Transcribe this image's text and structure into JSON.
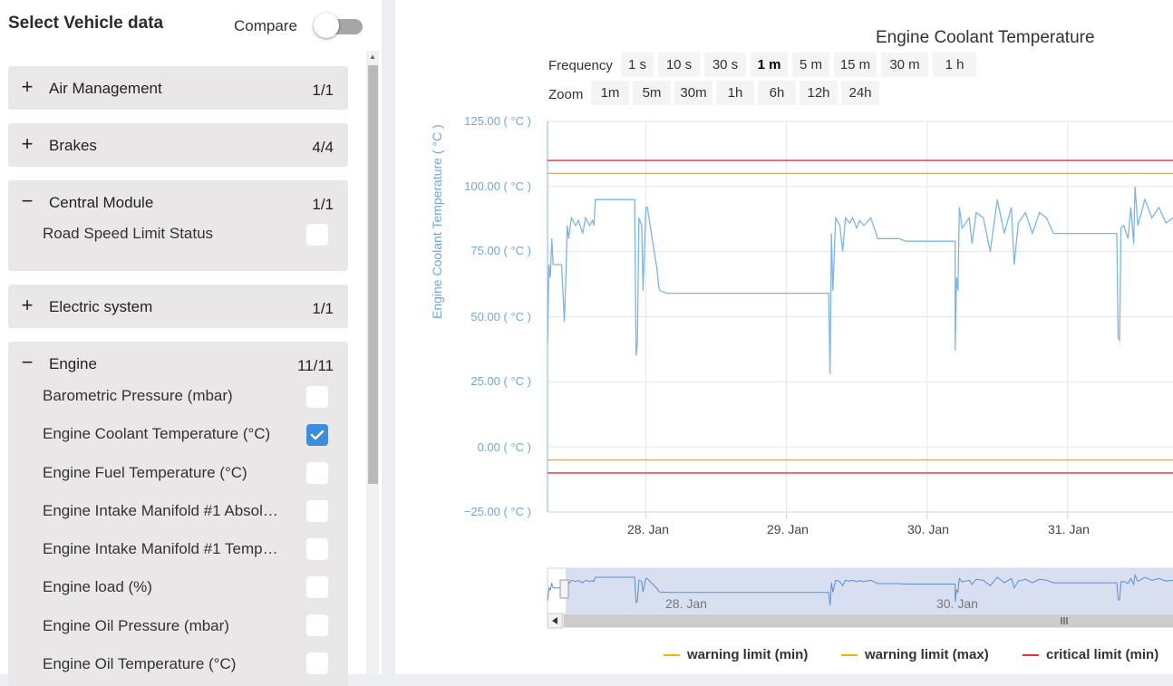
{
  "sidebar": {
    "title": "Select Vehicle data",
    "compare_label": "Compare",
    "groups": [
      {
        "sign": "+",
        "name": "Air Management",
        "count": "1/1",
        "items": []
      },
      {
        "sign": "+",
        "name": "Brakes",
        "count": "4/4",
        "items": []
      },
      {
        "sign": "−",
        "name": "Central Module",
        "count": "1/1",
        "items": [
          {
            "label": "Road Speed Limit Status",
            "checked": false
          }
        ]
      },
      {
        "sign": "+",
        "name": "Electric system",
        "count": "1/1",
        "items": []
      },
      {
        "sign": "−",
        "name": "Engine",
        "count": "11/11",
        "items": [
          {
            "label": "Barometric Pressure (mbar)",
            "checked": false
          },
          {
            "label": "Engine Coolant Temperature (°C)",
            "checked": true
          },
          {
            "label": "Engine Fuel Temperature (°C)",
            "checked": false
          },
          {
            "label": "Engine Intake Manifold #1 Absol…",
            "checked": false
          },
          {
            "label": "Engine Intake Manifold #1 Temp…",
            "checked": false
          },
          {
            "label": "Engine load (%)",
            "checked": false
          },
          {
            "label": "Engine Oil Pressure (mbar)",
            "checked": false
          },
          {
            "label": "Engine Oil Temperature (°C)",
            "checked": false
          }
        ]
      }
    ]
  },
  "chart": {
    "title": "Engine Coolant Temperature",
    "frequency_label": "Frequency",
    "frequency_options": [
      "1 s",
      "10 s",
      "30 s",
      "1 m",
      "5 m",
      "15 m",
      "30 m",
      "1 h"
    ],
    "frequency_selected": "1 m",
    "zoom_label": "Zoom",
    "zoom_options": [
      "1m",
      "5m",
      "30m",
      "1h",
      "6h",
      "12h",
      "24h"
    ],
    "navigator_labels": [
      "28. Jan",
      "30. Jan"
    ],
    "colors": {
      "series": "#7cb5ec",
      "warning": "#f0b400",
      "critical": "#e8302f"
    }
  },
  "chart_data": {
    "type": "line",
    "title": "Engine Coolant Temperature",
    "xlabel": "",
    "ylabel": "Engine Coolant Temperature ( °C )",
    "ylim": [
      -25,
      125
    ],
    "y_ticks": [
      "125.00 ( °C )",
      "100.00 ( °C )",
      "75.00 ( °C )",
      "50.00 ( °C )",
      "25.00 ( °C )",
      "0.00 ( °C )",
      "−25.00 ( °C )"
    ],
    "x_ticks": [
      "28. Jan",
      "29. Jan",
      "30. Jan",
      "31. Jan"
    ],
    "xlim_days": [
      27.3,
      31.75
    ],
    "grid": true,
    "legend_position": "bottom",
    "limits": [
      {
        "name": "warning limit (min)",
        "value": -5,
        "color": "#f0b400"
      },
      {
        "name": "warning limit (max)",
        "value": 105,
        "color": "#f0b400"
      },
      {
        "name": "critical limit (min)",
        "value": -10,
        "color": "#e8302f"
      },
      {
        "name": "",
        "value": 110,
        "color": "#e8302f"
      }
    ],
    "series": [
      {
        "name": "",
        "x": [
          27.3,
          27.31,
          27.32,
          27.33,
          27.34,
          27.38,
          27.4,
          27.42,
          27.43,
          27.44,
          27.45,
          27.47,
          27.5,
          27.52,
          27.55,
          27.57,
          27.6,
          27.62,
          27.63,
          27.64,
          27.65,
          27.9,
          27.92,
          27.93,
          27.94,
          27.95,
          27.97,
          27.98,
          28.0,
          28.01,
          28.05,
          28.08,
          28.09,
          28.1,
          28.15,
          28.2,
          28.25,
          28.3,
          28.5,
          28.6,
          28.8,
          28.9,
          29.3,
          29.31,
          29.32,
          29.33,
          29.35,
          29.38,
          29.4,
          29.42,
          29.45,
          29.47,
          29.5,
          29.52,
          29.55,
          29.6,
          29.65,
          29.8,
          29.85,
          30.2,
          30.2,
          30.21,
          30.22,
          30.23,
          30.25,
          30.3,
          30.32,
          30.35,
          30.4,
          30.45,
          30.5,
          30.55,
          30.6,
          30.62,
          30.65,
          30.7,
          30.75,
          30.8,
          30.85,
          30.9,
          31.2,
          31.21,
          31.35,
          31.36,
          31.37,
          31.38,
          31.4,
          31.43,
          31.45,
          31.47,
          31.48,
          31.5,
          31.55,
          31.6,
          31.65,
          31.7,
          31.75
        ],
        "values": [
          40,
          70,
          65,
          80,
          70,
          70,
          70,
          48,
          65,
          85,
          80,
          88,
          85,
          87,
          82,
          88,
          85,
          87,
          85,
          95,
          95,
          95,
          95,
          35,
          40,
          88,
          85,
          60,
          92,
          92,
          78,
          68,
          62,
          60,
          59,
          59,
          59,
          59,
          59,
          59,
          59,
          59,
          59,
          28,
          82,
          60,
          88,
          85,
          75,
          88,
          86,
          88,
          84,
          87,
          85,
          88,
          80,
          80,
          79,
          79,
          37,
          65,
          60,
          92,
          84,
          88,
          78,
          90,
          88,
          75,
          95,
          82,
          92,
          70,
          86,
          90,
          82,
          90,
          88,
          82,
          82,
          82,
          82,
          42,
          41,
          84,
          85,
          80,
          92,
          78,
          100,
          85,
          95,
          88,
          92,
          86,
          88
        ]
      }
    ]
  },
  "navigator": {
    "x_ticks": [
      "28. Jan",
      "30. Jan"
    ]
  }
}
